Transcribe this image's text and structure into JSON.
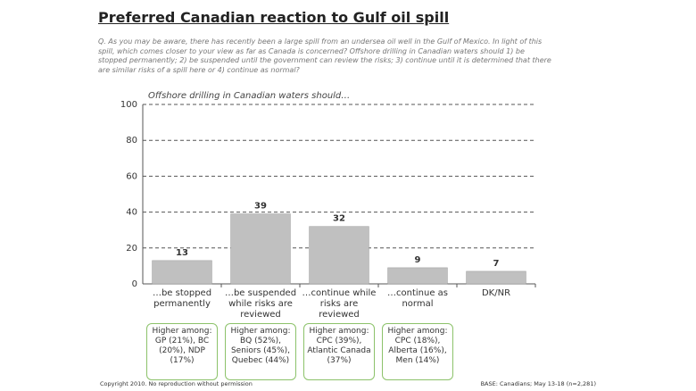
{
  "chart_data": {
    "type": "bar",
    "title": "Preferred Canadian reaction to Gulf oil spill",
    "question": "Q. As you may be aware, there has recently been a large spill from an undersea oil well in the Gulf of Mexico. In light of this spill, which comes closer to your view as far as Canada is concerned? Offshore drilling in Canadian waters should 1) be stopped permanently; 2) be suspended until the government can review the risks; 3) continue until it is determined that there are similar risks of a spill here or 4) continue as normal?",
    "subtitle": "Offshore drilling in Canadian waters should…",
    "categories": [
      "…be stopped permanently",
      "…be suspended while risks are reviewed",
      "…continue while risks are reviewed",
      "…continue as normal",
      "DK/NR"
    ],
    "values": [
      13,
      39,
      32,
      9,
      7
    ],
    "color": "#c0c0c0",
    "ylim": [
      0,
      100
    ],
    "yticks": [
      0,
      20,
      40,
      60,
      80,
      100
    ],
    "grid": true,
    "annotations": [
      "Higher among: GP (21%), BC (20%), NDP (17%)",
      "Higher among: BQ (52%), Seniors (45%), Quebec (44%)",
      "Higher among: CPC (39%), Atlantic Canada (37%)",
      "Higher among: CPC (18%), Alberta (16%), Men (14%)"
    ],
    "footer_left": "Copyright 2010. No reproduction without permission",
    "footer_right": "BASE: Canadians; May 13-18 (n=2,281)"
  }
}
